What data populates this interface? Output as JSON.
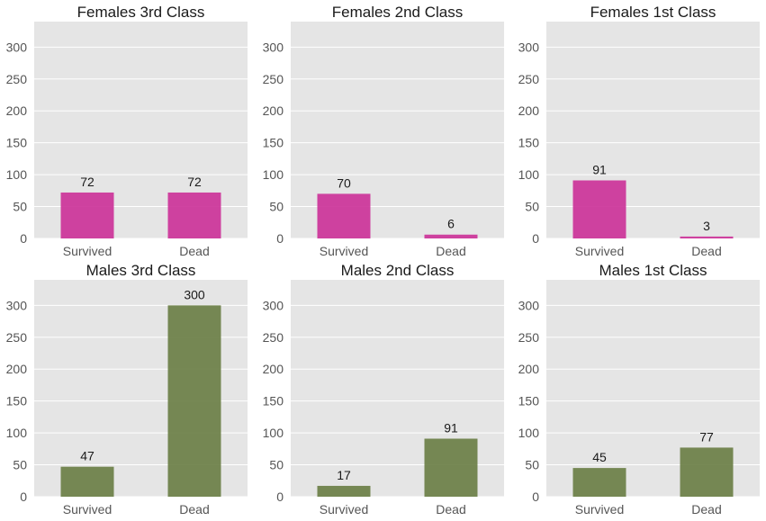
{
  "figure": {
    "background": "#ffffff",
    "plot_background": "#e5e5e5",
    "grid_color": "#ffffff"
  },
  "chart_data": [
    {
      "type": "bar",
      "title": "Females 3rd Class",
      "categories": [
        "Survived",
        "Dead"
      ],
      "values": [
        72,
        72
      ],
      "data_labels": [
        "72",
        "72"
      ],
      "color": "#cc3399",
      "ylim": [
        0,
        340
      ],
      "yticks": [
        0,
        50,
        100,
        150,
        200,
        250,
        300
      ],
      "grid": true
    },
    {
      "type": "bar",
      "title": "Females 2nd Class",
      "categories": [
        "Survived",
        "Dead"
      ],
      "values": [
        70,
        6
      ],
      "data_labels": [
        "70",
        "6"
      ],
      "color": "#cc3399",
      "ylim": [
        0,
        340
      ],
      "yticks": [
        0,
        50,
        100,
        150,
        200,
        250,
        300
      ],
      "grid": true
    },
    {
      "type": "bar",
      "title": "Females 1st Class",
      "categories": [
        "Survived",
        "Dead"
      ],
      "values": [
        91,
        3
      ],
      "data_labels": [
        "91",
        "3"
      ],
      "color": "#cc3399",
      "ylim": [
        0,
        340
      ],
      "yticks": [
        0,
        50,
        100,
        150,
        200,
        250,
        300
      ],
      "grid": true
    },
    {
      "type": "bar",
      "title": "Males 3rd Class",
      "categories": [
        "Survived",
        "Dead"
      ],
      "values": [
        47,
        300
      ],
      "data_labels": [
        "47",
        "300"
      ],
      "color": "#6b7f47",
      "ylim": [
        0,
        340
      ],
      "yticks": [
        0,
        50,
        100,
        150,
        200,
        250,
        300
      ],
      "grid": true
    },
    {
      "type": "bar",
      "title": "Males 2nd Class",
      "categories": [
        "Survived",
        "Dead"
      ],
      "values": [
        17,
        91
      ],
      "data_labels": [
        "17",
        "91"
      ],
      "color": "#6b7f47",
      "ylim": [
        0,
        340
      ],
      "yticks": [
        0,
        50,
        100,
        150,
        200,
        250,
        300
      ],
      "grid": true
    },
    {
      "type": "bar",
      "title": "Males 1st Class",
      "categories": [
        "Survived",
        "Dead"
      ],
      "values": [
        45,
        77
      ],
      "data_labels": [
        "45",
        "77"
      ],
      "color": "#6b7f47",
      "ylim": [
        0,
        340
      ],
      "yticks": [
        0,
        50,
        100,
        150,
        200,
        250,
        300
      ],
      "grid": true
    }
  ]
}
